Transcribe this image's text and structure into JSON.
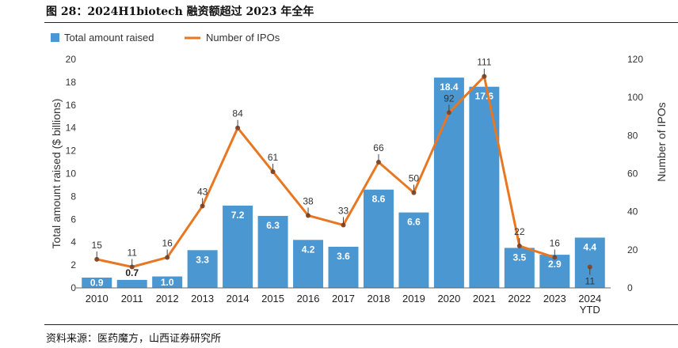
{
  "figure_title": "图 28：2024H1biotech 融资额超过 2023 年全年",
  "source": "资料来源：医药魔方，山西证券研究所",
  "colors": {
    "bar": "#4a97d1",
    "line": "#e87722",
    "marker": "#8a4a2a"
  },
  "chart_data": {
    "type": "bar",
    "categories": [
      "2010",
      "2011",
      "2012",
      "2013",
      "2014",
      "2015",
      "2016",
      "2017",
      "2018",
      "2019",
      "2020",
      "2021",
      "2022",
      "2023",
      "2024\nYTD"
    ],
    "series": [
      {
        "name": "Total amount raised",
        "type": "bar",
        "axis": "left",
        "values": [
          0.9,
          0.7,
          1.0,
          3.3,
          7.2,
          6.3,
          4.2,
          3.6,
          8.6,
          6.6,
          18.4,
          17.6,
          3.5,
          2.9,
          4.4
        ],
        "labels": [
          "0.9",
          "0.7",
          "1.0",
          "3.3",
          "7.2",
          "6.3",
          "4.2",
          "3.6",
          "8.6",
          "6.6",
          "18.4",
          "17.6",
          "3.5",
          "2.9",
          "4.4"
        ]
      },
      {
        "name": "Number of IPOs",
        "type": "line",
        "axis": "right",
        "values": [
          15,
          11,
          16,
          43,
          84,
          61,
          38,
          33,
          66,
          50,
          92,
          111,
          22,
          16,
          11
        ],
        "labels": [
          "15",
          "11",
          "16",
          "43",
          "84",
          "61",
          "38",
          "33",
          "66",
          "50",
          "92",
          "111",
          "22",
          "16",
          "11"
        ]
      }
    ],
    "ylabel": "Total amount raised ($ billions)",
    "y2label": "Number of IPOs",
    "ylim": [
      0,
      20
    ],
    "y2lim": [
      0,
      120
    ],
    "yticks": [
      "0",
      "2",
      "4",
      "6",
      "8",
      "10",
      "12",
      "14",
      "16",
      "18",
      "20"
    ],
    "y2ticks": [
      "0",
      "20",
      "40",
      "60",
      "80",
      "100",
      "120"
    ],
    "grid": false,
    "legend": "top-left"
  }
}
